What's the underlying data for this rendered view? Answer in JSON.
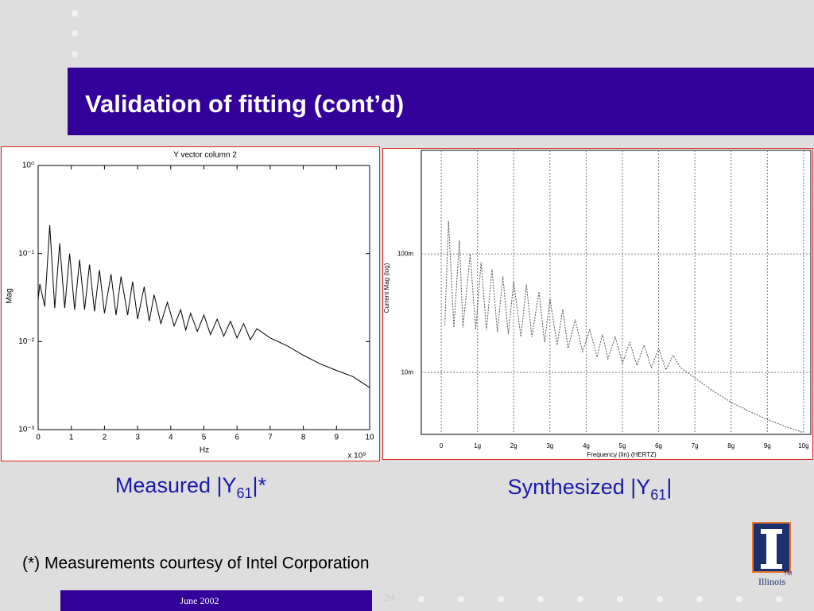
{
  "slide": {
    "title": "Validation of fitting (cont’d)",
    "captions": [
      {
        "text": "Measured |Y",
        "sub": "61",
        "suffix": "|*"
      },
      {
        "text": "Synthesized |Y",
        "sub": "61",
        "suffix": "|"
      }
    ],
    "footnote": "(*) Measurements courtesy of Intel Corporation",
    "footer_date": "June 2002",
    "page_number": "24",
    "logo_text": "Illinois",
    "logo_mark": "TM"
  },
  "chart_data": [
    {
      "type": "line",
      "title": "Y vector  column 2",
      "xlabel": "Hz",
      "ylabel": "Mag",
      "x_axis_note": "x 10⁹",
      "log_y": true,
      "grid": false,
      "line_style": "solid",
      "xlim": [
        0,
        10
      ],
      "xticks": [
        0,
        1,
        2,
        3,
        4,
        5,
        6,
        7,
        8,
        9,
        10
      ],
      "ylim": [
        0.001,
        1
      ],
      "yticks": [
        {
          "value": 0.001,
          "label": "10⁻³"
        },
        {
          "value": 0.01,
          "label": "10⁻²"
        },
        {
          "value": 0.1,
          "label": "10⁻¹"
        },
        {
          "value": 1,
          "label": "10⁰"
        }
      ],
      "x": [
        0,
        0.05,
        0.2,
        0.35,
        0.5,
        0.65,
        0.8,
        0.95,
        1.1,
        1.25,
        1.4,
        1.55,
        1.7,
        1.85,
        2.0,
        2.2,
        2.35,
        2.5,
        2.7,
        2.85,
        3.0,
        3.2,
        3.35,
        3.5,
        3.7,
        3.9,
        4.1,
        4.3,
        4.45,
        4.6,
        4.8,
        5.0,
        5.2,
        5.4,
        5.6,
        5.8,
        6.0,
        6.2,
        6.4,
        6.6,
        7,
        7.5,
        8,
        8.5,
        9,
        9.5,
        10
      ],
      "series": [
        {
          "color": "#000000",
          "values": [
            0.03,
            0.045,
            0.025,
            0.21,
            0.024,
            0.13,
            0.024,
            0.1,
            0.023,
            0.085,
            0.023,
            0.075,
            0.022,
            0.065,
            0.021,
            0.058,
            0.02,
            0.055,
            0.02,
            0.048,
            0.018,
            0.042,
            0.017,
            0.034,
            0.016,
            0.028,
            0.015,
            0.023,
            0.0135,
            0.021,
            0.013,
            0.02,
            0.012,
            0.018,
            0.0115,
            0.017,
            0.011,
            0.016,
            0.0105,
            0.014,
            0.011,
            0.009,
            0.007,
            0.0056,
            0.0047,
            0.004,
            0.003
          ]
        }
      ]
    },
    {
      "type": "line",
      "xlabel": "Frequency (lin) (HERTZ)",
      "ylabel": "Current Mag (log)",
      "log_y": true,
      "grid": true,
      "line_style": "dashed",
      "xlim": [
        -0.55,
        10.2
      ],
      "xticks": [
        0,
        {
          "value": 1,
          "label": "1g"
        },
        {
          "value": 2,
          "label": "2g"
        },
        {
          "value": 3,
          "label": "3g"
        },
        {
          "value": 4,
          "label": "4g"
        },
        {
          "value": 5,
          "label": "5g"
        },
        {
          "value": 6,
          "label": "6g"
        },
        {
          "value": 7,
          "label": "7g"
        },
        {
          "value": 8,
          "label": "8g"
        },
        {
          "value": 9,
          "label": "9g"
        },
        {
          "value": 10,
          "label": "10g"
        }
      ],
      "ylim": [
        0.003,
        0.75
      ],
      "yticks": [
        {
          "value": 0.01,
          "label": "10m"
        },
        {
          "value": 0.1,
          "label": "100m"
        }
      ],
      "x": [
        0.1,
        0.2,
        0.35,
        0.5,
        0.6,
        0.8,
        0.95,
        1.1,
        1.25,
        1.4,
        1.55,
        1.7,
        1.85,
        2.0,
        2.2,
        2.35,
        2.5,
        2.7,
        2.85,
        3.0,
        3.2,
        3.35,
        3.5,
        3.7,
        3.9,
        4.1,
        4.3,
        4.45,
        4.6,
        4.8,
        5.0,
        5.2,
        5.4,
        5.6,
        5.8,
        6.0,
        6.2,
        6.4,
        6.6,
        7,
        7.5,
        8,
        8.5,
        9,
        9.5,
        10
      ],
      "series": [
        {
          "color": "#555555",
          "values": [
            0.025,
            0.19,
            0.024,
            0.13,
            0.024,
            0.1,
            0.023,
            0.085,
            0.023,
            0.075,
            0.022,
            0.065,
            0.021,
            0.058,
            0.02,
            0.055,
            0.02,
            0.048,
            0.018,
            0.042,
            0.017,
            0.034,
            0.016,
            0.028,
            0.015,
            0.023,
            0.0135,
            0.021,
            0.013,
            0.02,
            0.012,
            0.018,
            0.0115,
            0.017,
            0.011,
            0.016,
            0.0105,
            0.014,
            0.011,
            0.009,
            0.007,
            0.0056,
            0.0047,
            0.004,
            0.0035,
            0.0031
          ]
        }
      ]
    }
  ]
}
